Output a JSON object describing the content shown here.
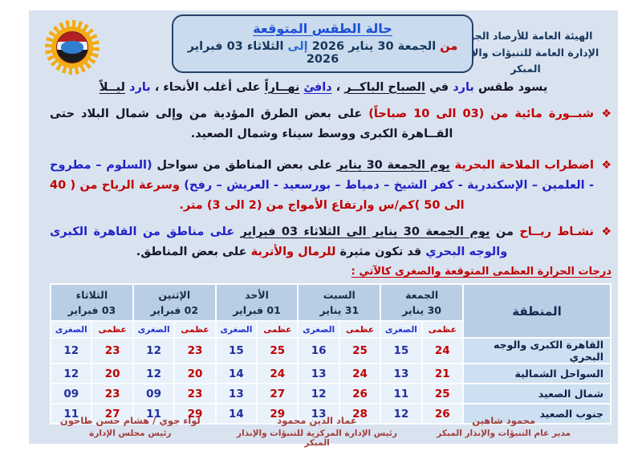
{
  "colors": {
    "accent_red": "#c00000",
    "accent_blue": "#2222c8",
    "navy": "#17365d",
    "panel_bg": "#d9e3f0",
    "table_header_bg": "#b9cde4",
    "signature_maroon": "#a33c3c"
  },
  "header": {
    "org_line1": "الهيئة العامة للأرصاد الجوية",
    "org_line2": "الإدارة العامة للتنبؤات والإنذار المبكر",
    "title": "حالة الطقس المتوقعة",
    "date_line": {
      "from_word": "من",
      "from_text": "الجمعة 30 يناير 2026",
      "to_word": "إلى",
      "to_text": "الثلاثاء 03 فبراير 2026"
    },
    "logo_icon": "sun-cloud-emblem"
  },
  "intro": {
    "segments": [
      {
        "t": "يسود طقس ",
        "c": "k"
      },
      {
        "t": "بارد",
        "c": "b"
      },
      {
        "t": " في ",
        "c": "k"
      },
      {
        "t": "الصباح الباكــر",
        "c": "k",
        "u": true
      },
      {
        "t": " ، ",
        "c": "k"
      },
      {
        "t": "دافئ",
        "c": "b",
        "u": true
      },
      {
        "t": " ",
        "c": "k"
      },
      {
        "t": "نهــاراً",
        "c": "k",
        "u": true
      },
      {
        "t": " على أغلب الأنحاء ، ",
        "c": "k"
      },
      {
        "t": "بارد",
        "c": "b"
      },
      {
        "t": " ",
        "c": "k"
      },
      {
        "t": "ليــلاً",
        "c": "k",
        "u": true
      }
    ]
  },
  "bullets": [
    {
      "glyph": "❖",
      "segments": [
        {
          "t": "شبــورة مائية من (03 الى 10 صباحاً)",
          "c": "r"
        },
        {
          "t": " على بعض الطرق المؤدية من وإلى شمال البلاد حتى القــاهرة الكبرى ووسط سيناء وشمال الصعيد.",
          "c": "k"
        }
      ]
    },
    {
      "glyph": "❖",
      "segments": [
        {
          "t": "اضطراب الملاحة البحرية ",
          "c": "r"
        },
        {
          "t": "يوم الجمعة 30 يناير",
          "c": "k",
          "u": true
        },
        {
          "t": " على بعض المناطق من سواحل ",
          "c": "k"
        },
        {
          "t": "(السلوم – مطروح - العلمين – الإسكندرية - كفر الشيخ – دمياط – بورسعيد - العريش – رفح)",
          "c": "b"
        },
        {
          "t": " وسرعة الرياح من ( 40 الى 50 )كم/س وارتفاع الأمواج من (2 الى 3) متر.",
          "c": "r"
        }
      ]
    },
    {
      "glyph": "❖",
      "segments": [
        {
          "t": "نشـاط ريــاح ",
          "c": "r"
        },
        {
          "t": "من ",
          "c": "k"
        },
        {
          "t": "يوم الجمعة 30 يناير الى الثلاثاء 03 فبراير",
          "c": "k",
          "u": true
        },
        {
          "t": " على مناطق من القاهرة الكبرى والوجه البحري ",
          "c": "b"
        },
        {
          "t": "قد تكون مثيرة ",
          "c": "k"
        },
        {
          "t": "للرمال والأتربة",
          "c": "r"
        },
        {
          "t": " على بعض المناطق.",
          "c": "k"
        }
      ]
    }
  ],
  "table_caption": "درجات الحرارة العظمى المتوقعة والصغرى كالآتي :",
  "table": {
    "region_header": "المنطقة",
    "max_label": "عظمى",
    "min_label": "الصغرى",
    "days": [
      {
        "name": "الجمعة",
        "date": "30 يناير"
      },
      {
        "name": "السبت",
        "date": "31 يناير"
      },
      {
        "name": "الأحد",
        "date": "01 فبراير"
      },
      {
        "name": "الإثنين",
        "date": "02 فبراير"
      },
      {
        "name": "الثلاثاء",
        "date": "03 فبراير"
      }
    ],
    "rows": [
      {
        "region": "القاهرة الكبرى والوجه البحري",
        "temps": [
          [
            "24",
            "15"
          ],
          [
            "25",
            "16"
          ],
          [
            "25",
            "15"
          ],
          [
            "23",
            "12"
          ],
          [
            "23",
            "12"
          ]
        ]
      },
      {
        "region": "السواحل الشمالية",
        "temps": [
          [
            "21",
            "13"
          ],
          [
            "24",
            "13"
          ],
          [
            "24",
            "14"
          ],
          [
            "20",
            "12"
          ],
          [
            "20",
            "12"
          ]
        ]
      },
      {
        "region": "شمال الصعيد",
        "temps": [
          [
            "25",
            "11"
          ],
          [
            "26",
            "12"
          ],
          [
            "27",
            "13"
          ],
          [
            "23",
            "09"
          ],
          [
            "23",
            "09"
          ]
        ]
      },
      {
        "region": "جنوب الصعيد",
        "temps": [
          [
            "26",
            "12"
          ],
          [
            "28",
            "13"
          ],
          [
            "29",
            "14"
          ],
          [
            "29",
            "11"
          ],
          [
            "27",
            "11"
          ]
        ]
      }
    ]
  },
  "signatures": [
    {
      "name": "محمود شاهين",
      "title": "مدير عام التنبؤات والإنذار المبكر"
    },
    {
      "name": "عماد الدين محمود",
      "title": "رئيس الإدارة المركزية للتنبؤات والإنذار المبكر"
    },
    {
      "name": "لواء جوي / هشام حسن طاحون",
      "title": "رئيس مجلس الإدارة"
    }
  ]
}
